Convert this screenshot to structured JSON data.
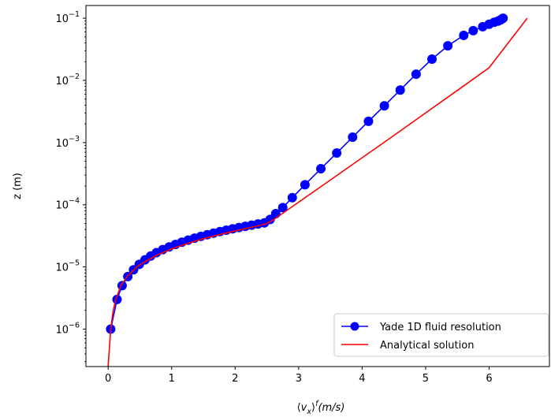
{
  "chart_data": {
    "type": "line",
    "title": "",
    "xlabel": "⟨v_x⟩^f (m/s)",
    "ylabel": "z (m)",
    "xlim": [
      -0.35,
      6.95
    ],
    "ylim": [
      2.5e-07,
      0.16
    ],
    "y_scale": "log",
    "x_ticks": [
      0,
      1,
      2,
      3,
      4,
      5,
      6
    ],
    "x_tick_labels": [
      "0",
      "1",
      "2",
      "3",
      "4",
      "5",
      "6"
    ],
    "y_ticks": [
      1e-06,
      1e-05,
      0.0001,
      0.001,
      0.01,
      0.1
    ],
    "y_tick_labels": [
      {
        "base": "10",
        "exp": "−6"
      },
      {
        "base": "10",
        "exp": "−5"
      },
      {
        "base": "10",
        "exp": "−4"
      },
      {
        "base": "10",
        "exp": "−3"
      },
      {
        "base": "10",
        "exp": "−2"
      },
      {
        "base": "10",
        "exp": "−1"
      }
    ],
    "grid": false,
    "legend_position": "bottom-right",
    "series": [
      {
        "name": "Yade 1D fluid resolution",
        "style": "line-marker",
        "color": "#0000ff",
        "marker_color": "#0000ff",
        "x": [
          0.04,
          0.14,
          0.22,
          0.31,
          0.4,
          0.49,
          0.58,
          0.67,
          0.76,
          0.86,
          0.96,
          1.06,
          1.16,
          1.26,
          1.36,
          1.46,
          1.56,
          1.66,
          1.76,
          1.86,
          1.96,
          2.06,
          2.16,
          2.26,
          2.36,
          2.46,
          2.55,
          2.64,
          2.75,
          2.9,
          3.1,
          3.35,
          3.6,
          3.85,
          4.1,
          4.35,
          4.6,
          4.85,
          5.1,
          5.35,
          5.6,
          5.75,
          5.9,
          6.0,
          6.08,
          6.14,
          6.18,
          6.2,
          6.22
        ],
        "y": [
          1e-06,
          3e-06,
          5e-06,
          7e-06,
          9e-06,
          1.1e-05,
          1.3e-05,
          1.5e-05,
          1.7e-05,
          1.9e-05,
          2.1e-05,
          2.3e-05,
          2.5e-05,
          2.7e-05,
          2.9e-05,
          3.1e-05,
          3.3e-05,
          3.5e-05,
          3.7e-05,
          3.9e-05,
          4.1e-05,
          4.3e-05,
          4.5e-05,
          4.7e-05,
          4.9e-05,
          5.1e-05,
          5.8e-05,
          7.2e-05,
          9e-05,
          0.00013,
          0.00021,
          0.00038,
          0.00068,
          0.00122,
          0.0022,
          0.0039,
          0.007,
          0.0126,
          0.022,
          0.036,
          0.053,
          0.063,
          0.073,
          0.08,
          0.086,
          0.09,
          0.094,
          0.097,
          0.1
        ]
      },
      {
        "name": "Analytical solution",
        "style": "line",
        "color": "#ff0000",
        "x": [
          0.0,
          0.005,
          0.02,
          0.04,
          0.08,
          0.12,
          0.2,
          0.3,
          0.45,
          0.6,
          0.8,
          1.0,
          1.2,
          1.5,
          1.8,
          2.1,
          2.4,
          2.5,
          2.6,
          3.0,
          3.5,
          4.0,
          4.5,
          5.0,
          5.5,
          6.0,
          6.6
        ],
        "y": [
          2.5e-07,
          3e-07,
          5e-07,
          1e-06,
          2e-06,
          3e-06,
          5e-06,
          7e-06,
          1e-05,
          1.25e-05,
          1.6e-05,
          1.95e-05,
          2.3e-05,
          2.85e-05,
          3.4e-05,
          4e-05,
          4.7e-05,
          5e-05,
          5.7e-05,
          0.00011,
          0.00025,
          0.00057,
          0.0013,
          0.003,
          0.0069,
          0.016,
          0.1
        ]
      }
    ]
  }
}
